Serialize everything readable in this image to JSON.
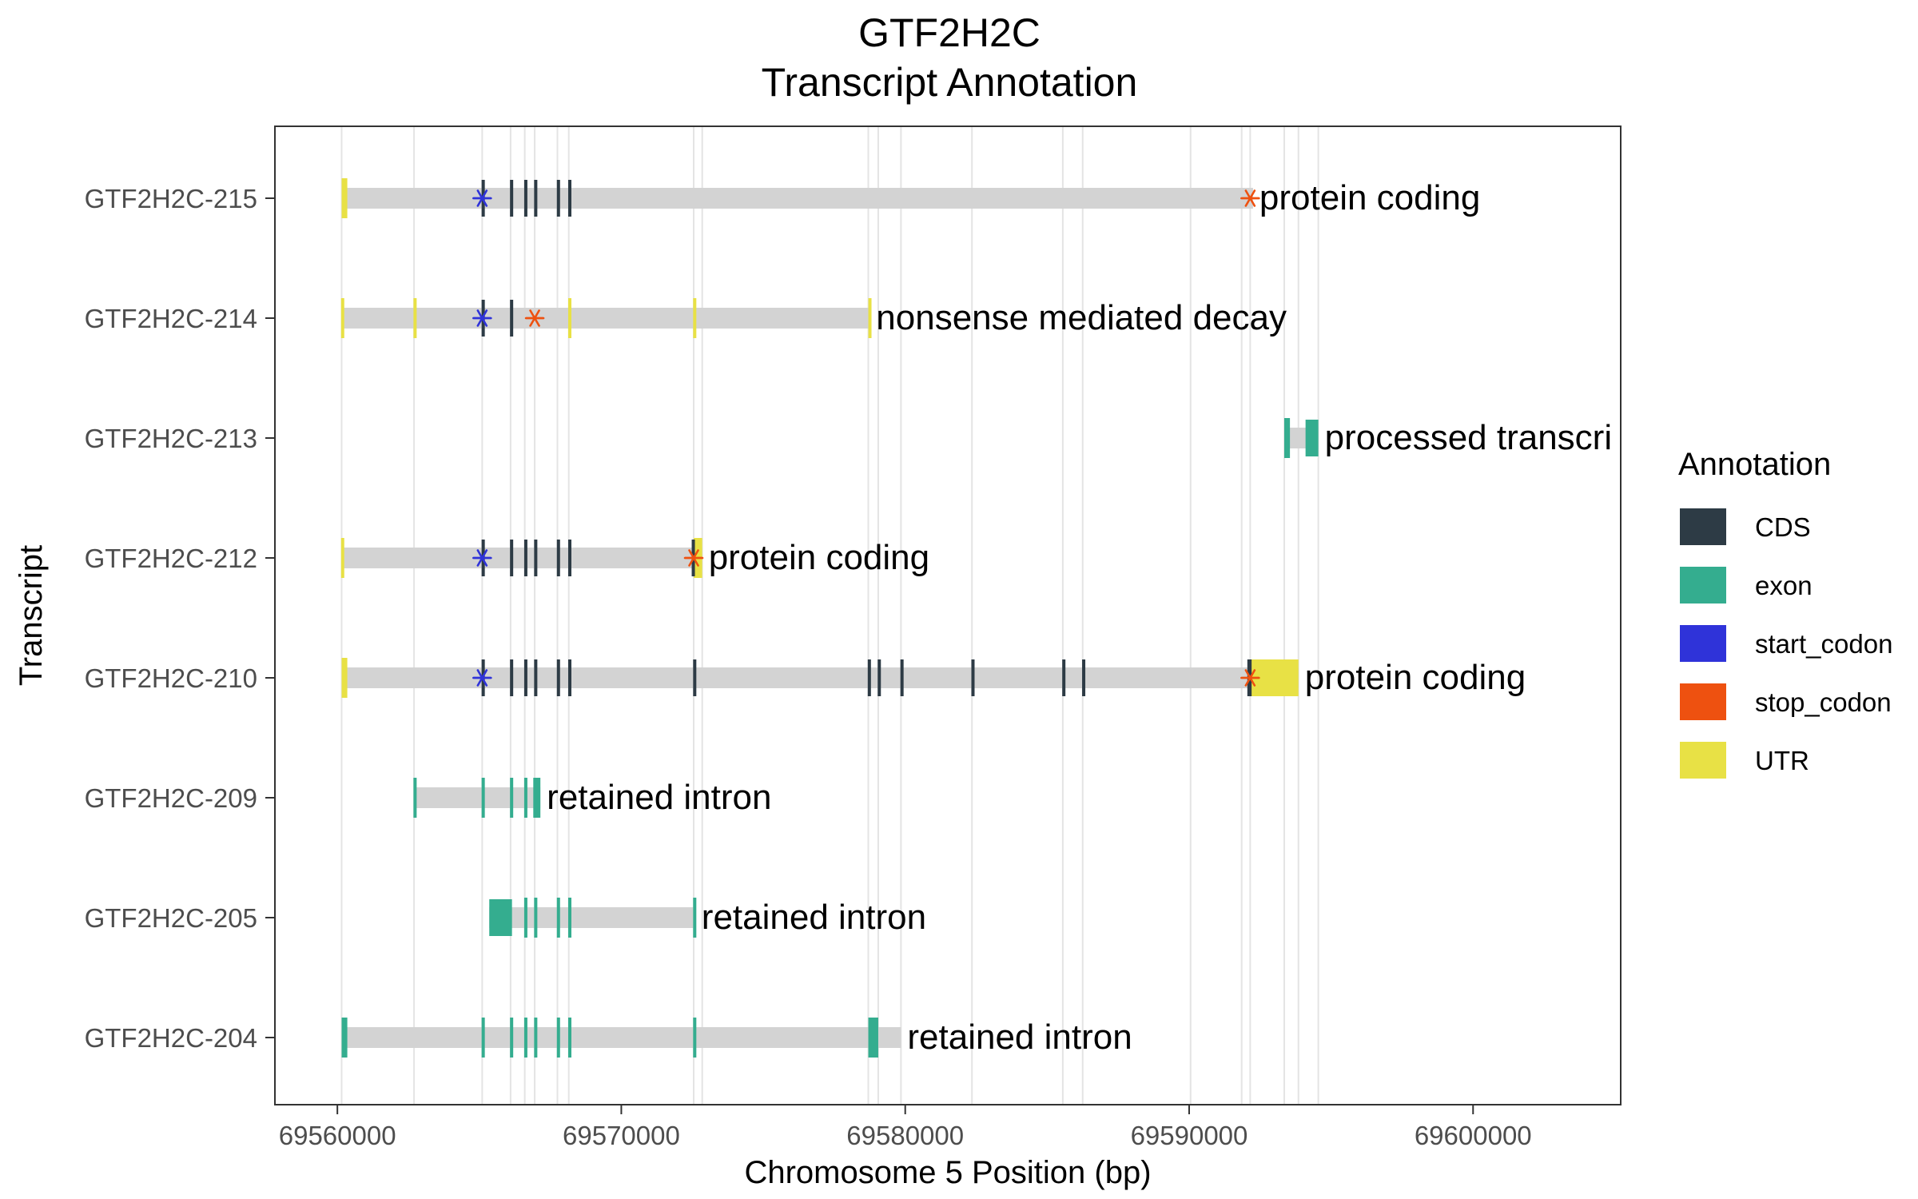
{
  "chart_data": {
    "type": "gene-annotation",
    "title": "GTF2H2C",
    "subtitle": "Transcript Annotation",
    "xlabel": "Chromosome 5 Position (bp)",
    "ylabel": "Transcript",
    "xlim": [
      69557800,
      69605200
    ],
    "x_ticks": [
      69560000,
      69570000,
      69580000,
      69590000,
      69600000
    ],
    "x_tick_labels": [
      "69560000",
      "69570000",
      "69580000",
      "69590000",
      "69600000"
    ],
    "grid": "light vertical lines at feature boundaries",
    "legend": {
      "title": "Annotation",
      "position": "right",
      "items": [
        {
          "label": "CDS",
          "color": "#2d3b45"
        },
        {
          "label": "exon",
          "color": "#34ad8f"
        },
        {
          "label": "start_codon",
          "color": "#2f33d9"
        },
        {
          "label": "stop_codon",
          "color": "#ee5110"
        },
        {
          "label": "UTR",
          "color": "#e8e145"
        }
      ]
    },
    "boundaries": [
      69560150,
      69562700,
      69565100,
      69566100,
      69566600,
      69566950,
      69567750,
      69568150,
      69572550,
      69572850,
      69578700,
      69579050,
      69579850,
      69582350,
      69585550,
      69586250,
      69590050,
      69591850,
      69592150,
      69593350,
      69593850,
      69594550
    ],
    "transcripts": [
      {
        "name": "GTF2H2C-215",
        "start": 69560150,
        "end": 69592250,
        "biotype": "protein coding",
        "features": [
          {
            "type": "UTR",
            "start": 69560150,
            "end": 69560350
          },
          {
            "type": "start_codon",
            "pos": 69565100
          },
          {
            "type": "CDS",
            "start": 69565080,
            "end": 69565120
          },
          {
            "type": "CDS",
            "start": 69566080,
            "end": 69566130
          },
          {
            "type": "CDS",
            "start": 69566580,
            "end": 69566620
          },
          {
            "type": "CDS",
            "start": 69566930,
            "end": 69566980
          },
          {
            "type": "CDS",
            "start": 69567730,
            "end": 69567770
          },
          {
            "type": "CDS",
            "start": 69568130,
            "end": 69568170
          },
          {
            "type": "stop_codon",
            "pos": 69592150
          }
        ]
      },
      {
        "name": "GTF2H2C-214",
        "start": 69560150,
        "end": 69578750,
        "biotype": "nonsense mediated decay",
        "features": [
          {
            "type": "UTR",
            "start": 69560130,
            "end": 69560170
          },
          {
            "type": "UTR",
            "start": 69562680,
            "end": 69562730
          },
          {
            "type": "start_codon",
            "pos": 69565100
          },
          {
            "type": "CDS",
            "start": 69565080,
            "end": 69565120
          },
          {
            "type": "CDS",
            "start": 69566080,
            "end": 69566130
          },
          {
            "type": "stop_codon",
            "pos": 69566950
          },
          {
            "type": "UTR",
            "start": 69568130,
            "end": 69568170
          },
          {
            "type": "UTR",
            "start": 69572530,
            "end": 69572580
          },
          {
            "type": "UTR",
            "start": 69578700,
            "end": 69578750
          }
        ]
      },
      {
        "name": "GTF2H2C-213",
        "start": 69593350,
        "end": 69594550,
        "biotype": "processed transcri",
        "features": [
          {
            "type": "exon",
            "start": 69593350,
            "end": 69593550
          },
          {
            "type": "exon",
            "start": 69594100,
            "end": 69594550
          }
        ]
      },
      {
        "name": "GTF2H2C-212",
        "start": 69560150,
        "end": 69572850,
        "biotype": "protein coding",
        "features": [
          {
            "type": "UTR",
            "start": 69560130,
            "end": 69560170
          },
          {
            "type": "start_codon",
            "pos": 69565100
          },
          {
            "type": "CDS",
            "start": 69565080,
            "end": 69565120
          },
          {
            "type": "CDS",
            "start": 69566080,
            "end": 69566130
          },
          {
            "type": "CDS",
            "start": 69566580,
            "end": 69566620
          },
          {
            "type": "CDS",
            "start": 69566930,
            "end": 69566980
          },
          {
            "type": "CDS",
            "start": 69567730,
            "end": 69567770
          },
          {
            "type": "CDS",
            "start": 69568130,
            "end": 69568170
          },
          {
            "type": "UTR",
            "start": 69572550,
            "end": 69572850
          },
          {
            "type": "CDS",
            "start": 69572480,
            "end": 69572580
          },
          {
            "type": "stop_codon",
            "pos": 69572550
          }
        ]
      },
      {
        "name": "GTF2H2C-210",
        "start": 69560150,
        "end": 69593850,
        "biotype": "protein coding",
        "features": [
          {
            "type": "UTR",
            "start": 69560150,
            "end": 69560350
          },
          {
            "type": "start_codon",
            "pos": 69565100
          },
          {
            "type": "CDS",
            "start": 69565080,
            "end": 69565120
          },
          {
            "type": "CDS",
            "start": 69566080,
            "end": 69566130
          },
          {
            "type": "CDS",
            "start": 69566580,
            "end": 69566620
          },
          {
            "type": "CDS",
            "start": 69566930,
            "end": 69566980
          },
          {
            "type": "CDS",
            "start": 69567730,
            "end": 69567770
          },
          {
            "type": "CDS",
            "start": 69568130,
            "end": 69568170
          },
          {
            "type": "CDS",
            "start": 69572530,
            "end": 69572580
          },
          {
            "type": "CDS",
            "start": 69578680,
            "end": 69578730
          },
          {
            "type": "CDS",
            "start": 69579030,
            "end": 69579080
          },
          {
            "type": "CDS",
            "start": 69579830,
            "end": 69579880
          },
          {
            "type": "CDS",
            "start": 69582330,
            "end": 69582380
          },
          {
            "type": "CDS",
            "start": 69585530,
            "end": 69585580
          },
          {
            "type": "CDS",
            "start": 69586230,
            "end": 69586280
          },
          {
            "type": "UTR",
            "start": 69592150,
            "end": 69593850
          },
          {
            "type": "CDS",
            "start": 69592050,
            "end": 69592200
          },
          {
            "type": "stop_codon",
            "pos": 69592150
          }
        ]
      },
      {
        "name": "GTF2H2C-209",
        "start": 69562700,
        "end": 69567150,
        "biotype": "retained intron",
        "features": [
          {
            "type": "exon",
            "start": 69562680,
            "end": 69562730
          },
          {
            "type": "exon",
            "start": 69565080,
            "end": 69565120
          },
          {
            "type": "exon",
            "start": 69566080,
            "end": 69566130
          },
          {
            "type": "exon",
            "start": 69566580,
            "end": 69566620
          },
          {
            "type": "exon",
            "start": 69566900,
            "end": 69567150
          }
        ]
      },
      {
        "name": "GTF2H2C-205",
        "start": 69565350,
        "end": 69572600,
        "biotype": "retained intron",
        "features": [
          {
            "type": "exon",
            "start": 69565350,
            "end": 69566150
          },
          {
            "type": "exon",
            "start": 69566580,
            "end": 69566620
          },
          {
            "type": "exon",
            "start": 69566930,
            "end": 69566980
          },
          {
            "type": "exon",
            "start": 69567730,
            "end": 69567770
          },
          {
            "type": "exon",
            "start": 69568130,
            "end": 69568170
          },
          {
            "type": "exon",
            "start": 69572530,
            "end": 69572600
          }
        ]
      },
      {
        "name": "GTF2H2C-204",
        "start": 69560150,
        "end": 69579850,
        "biotype": "retained intron",
        "features": [
          {
            "type": "exon",
            "start": 69560150,
            "end": 69560350
          },
          {
            "type": "exon",
            "start": 69565080,
            "end": 69565120
          },
          {
            "type": "exon",
            "start": 69566080,
            "end": 69566130
          },
          {
            "type": "exon",
            "start": 69566580,
            "end": 69566620
          },
          {
            "type": "exon",
            "start": 69566930,
            "end": 69566980
          },
          {
            "type": "exon",
            "start": 69567730,
            "end": 69567770
          },
          {
            "type": "exon",
            "start": 69568130,
            "end": 69568170
          },
          {
            "type": "exon",
            "start": 69572530,
            "end": 69572580
          },
          {
            "type": "exon",
            "start": 69578700,
            "end": 69579050
          }
        ]
      }
    ]
  }
}
